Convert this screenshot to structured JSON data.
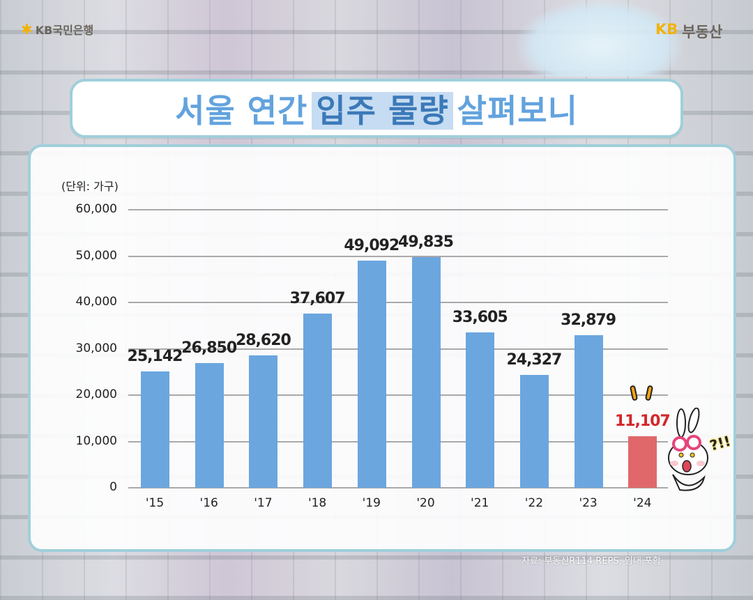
{
  "branding": {
    "left_logo": "KB국민은행",
    "right_logo_kb": "KB",
    "right_logo_brand": "부동산"
  },
  "title": {
    "part1": "서울 연간",
    "highlight": "입주 물량",
    "part2": "살펴보니"
  },
  "source_note": "자료: 부동산R114 REPS, 임대 포함",
  "mascot": {
    "exclaim": "?!!"
  },
  "colors": {
    "bar_default": "#6ba6df",
    "bar_highlight": "#e0686a",
    "highlight_label": "#d4272a",
    "title": "#62a3de",
    "frame": "#9fcfda"
  },
  "chart_data": {
    "type": "bar",
    "title": "서울 연간 입주 물량 살펴보니",
    "unit_label": "(단위: 가구)",
    "xlabel": "",
    "ylabel": "가구",
    "ylim": [
      0,
      60000
    ],
    "yticks": [
      "0",
      "10,000",
      "20,000",
      "30,000",
      "40,000",
      "50,000",
      "60,000"
    ],
    "grid": true,
    "categories": [
      "'15",
      "'16",
      "'17",
      "'18",
      "'19",
      "'20",
      "'21",
      "'22",
      "'23",
      "'24"
    ],
    "values": [
      25142,
      26850,
      28620,
      37607,
      49092,
      49835,
      33605,
      24327,
      32879,
      11107
    ],
    "value_labels": [
      "25,142",
      "26,850",
      "28,620",
      "37,607",
      "49,092",
      "49,835",
      "33,605",
      "24,327",
      "32,879",
      "11,107"
    ],
    "highlighted_category": "'24"
  }
}
